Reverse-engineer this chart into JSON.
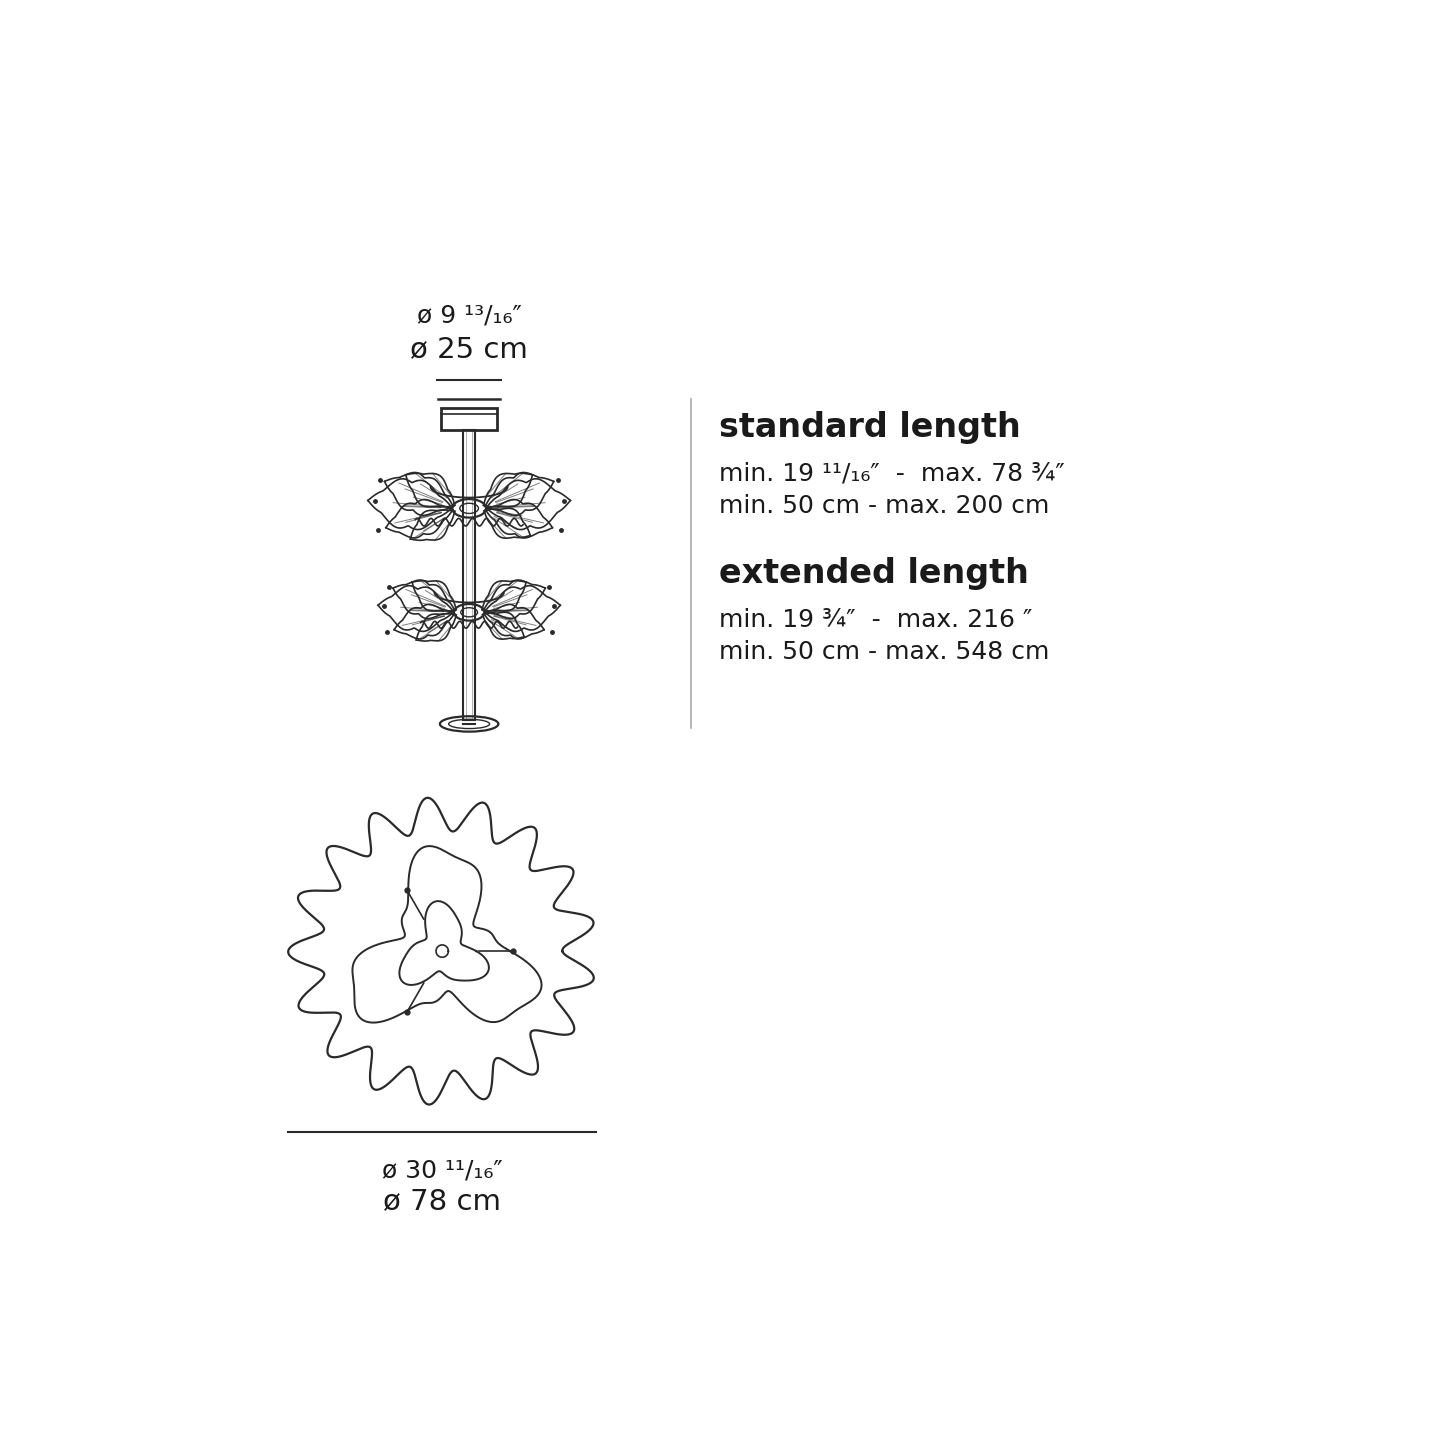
{
  "bg_color": "#ffffff",
  "line_color": "#2a2a2a",
  "text_color": "#1a1a1a",
  "top_dim_line1": "ø 9 ¹³/₁₆″",
  "top_dim_line2": "ø 25 cm",
  "bottom_dim_line1": "ø 30 ¹¹/₁₆″",
  "bottom_dim_line2": "ø 78 cm",
  "standard_length_title": "standard length",
  "standard_length_line1": "min. 19 ¹¹/₁₆″  -  max. 78 ¾″",
  "standard_length_line2": "min. 50 cm - max. 200 cm",
  "extended_length_title": "extended length",
  "extended_length_line1": "min. 19 ¾″  -  max. 216 ″",
  "extended_length_line2": "min. 50 cm - max. 548 cm",
  "fig_width": 14.45,
  "fig_height": 14.45
}
